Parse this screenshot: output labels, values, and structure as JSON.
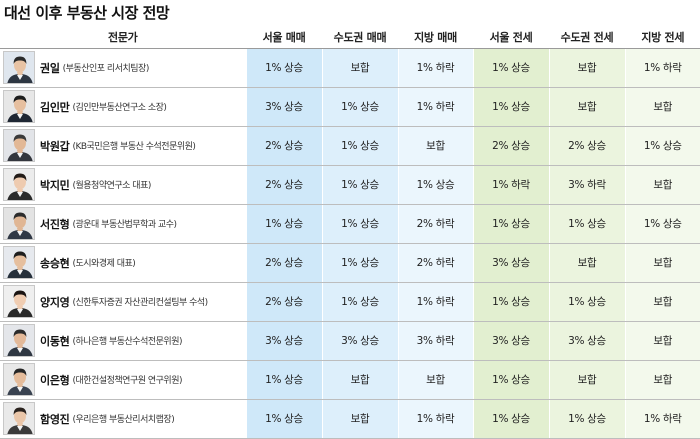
{
  "title": "대선 이후 부동산 시장 전망",
  "headers": {
    "expert": "전문가",
    "seoul_sale": "서울 매매",
    "metro_sale": "수도권 매매",
    "local_sale": "지방 매매",
    "seoul_jeonse": "서울 전세",
    "metro_jeonse": "수도권 전세",
    "local_jeonse": "지방 전세"
  },
  "rows": [
    {
      "name": "권일",
      "org": "(부동산인포 리서치팀장)",
      "v": [
        "1% 상승",
        "보합",
        "1% 하락",
        "1% 상승",
        "보합",
        "1% 하락"
      ]
    },
    {
      "name": "김인만",
      "org": "(김인만부동산연구소 소장)",
      "v": [
        "3% 상승",
        "1% 상승",
        "1% 하락",
        "1% 상승",
        "보합",
        "보합"
      ]
    },
    {
      "name": "박원갑",
      "org": "(KB국민은행 부동산 수석전문위원)",
      "v": [
        "2% 상승",
        "1% 상승",
        "보합",
        "2% 상승",
        "2% 상승",
        "1% 상승"
      ]
    },
    {
      "name": "박지민",
      "org": "(월용청약연구소 대표)",
      "v": [
        "2% 상승",
        "1% 상승",
        "1% 상승",
        "1% 하락",
        "3% 하락",
        "보합"
      ]
    },
    {
      "name": "서진형",
      "org": "(광운대 부동산법무학과 교수)",
      "v": [
        "1% 상승",
        "1% 상승",
        "2% 하락",
        "1% 상승",
        "1% 상승",
        "1% 상승"
      ]
    },
    {
      "name": "송승현",
      "org": "(도시와경제 대표)",
      "v": [
        "2% 상승",
        "1% 상승",
        "2% 하락",
        "3% 상승",
        "보합",
        "보합"
      ]
    },
    {
      "name": "양지영",
      "org": "(신한투자증권 자산관리컨설팅부 수석)",
      "v": [
        "2% 상승",
        "1% 상승",
        "1% 하락",
        "1% 상승",
        "1% 상승",
        "보합"
      ]
    },
    {
      "name": "이동현",
      "org": "(하나은행 부동산수석전문위원)",
      "v": [
        "3% 상승",
        "3% 상승",
        "3% 하락",
        "3% 상승",
        "3% 상승",
        "보합"
      ]
    },
    {
      "name": "이은형",
      "org": "(대한건설정책연구원 연구위원)",
      "v": [
        "1% 상승",
        "보합",
        "보합",
        "1% 상승",
        "보합",
        "보합"
      ]
    },
    {
      "name": "함영진",
      "org": "(우리은행 부동산리서치랩장)",
      "v": [
        "1% 상승",
        "보합",
        "1% 하락",
        "1% 상승",
        "1% 상승",
        "1% 하락"
      ]
    }
  ],
  "avatar_colors": [
    {
      "bg": "#dfe6ee",
      "hair": "#2a2a2a",
      "skin": "#e8c3a4",
      "suit": "#2d3642"
    },
    {
      "bg": "#e7e7e7",
      "hair": "#1d1d1d",
      "skin": "#e6bf9f",
      "suit": "#1f2733"
    },
    {
      "bg": "#e2e4e8",
      "hair": "#3a3a3a",
      "skin": "#e2b896",
      "suit": "#33363d"
    },
    {
      "bg": "#ececec",
      "hair": "#221b17",
      "skin": "#eecbb0",
      "suit": "#2b2b2b"
    },
    {
      "bg": "#e3e3e3",
      "hair": "#2c2c2c",
      "skin": "#e0b694",
      "suit": "#303845"
    },
    {
      "bg": "#e6e9ee",
      "hair": "#1e1e1e",
      "skin": "#e6bf9e",
      "suit": "#26303b"
    },
    {
      "bg": "#efefef",
      "hair": "#1a1412",
      "skin": "#f0cdb2",
      "suit": "#2a2a2a"
    },
    {
      "bg": "#e4e6ea",
      "hair": "#2b2b2b",
      "skin": "#e3b999",
      "suit": "#2f3742"
    },
    {
      "bg": "#e8e8e8",
      "hair": "#262626",
      "skin": "#e5bc9b",
      "suit": "#394250"
    },
    {
      "bg": "#e9e9e9",
      "hair": "#2a221e",
      "skin": "#eac6a9",
      "suit": "#3a3a3a"
    }
  ]
}
